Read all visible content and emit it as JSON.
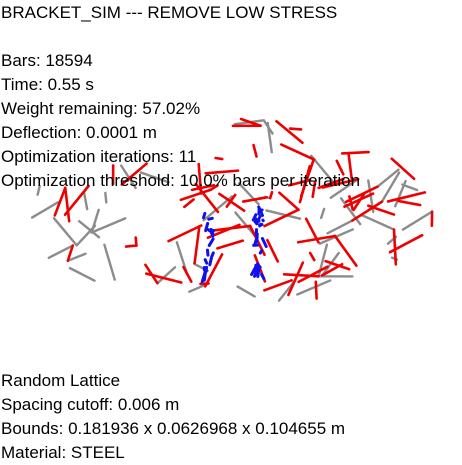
{
  "title": "BRACKET_SIM --- REMOVE LOW STRESS",
  "stats": {
    "bars": "Bars: 18594",
    "time": "Time: 0.55 s",
    "weight": "Weight remaining: 57.02%",
    "deflection": "Deflection: 0.0001 m",
    "iterations": "Optimization iterations: 11",
    "threshold": "Optimization threshold: 10.0% bars per iteration"
  },
  "lattice": {
    "type": "Random Lattice",
    "spacing": "Spacing cutoff: 0.006 m",
    "bounds": "Bounds: 0.181936 x 0.0626968 x 0.104655 m",
    "material": "Material: STEEL"
  },
  "colors": {
    "background": "#ffffff",
    "high_stress": "#ee0000",
    "low_stress": "#8c8c8c",
    "support": "#1010ee"
  }
}
